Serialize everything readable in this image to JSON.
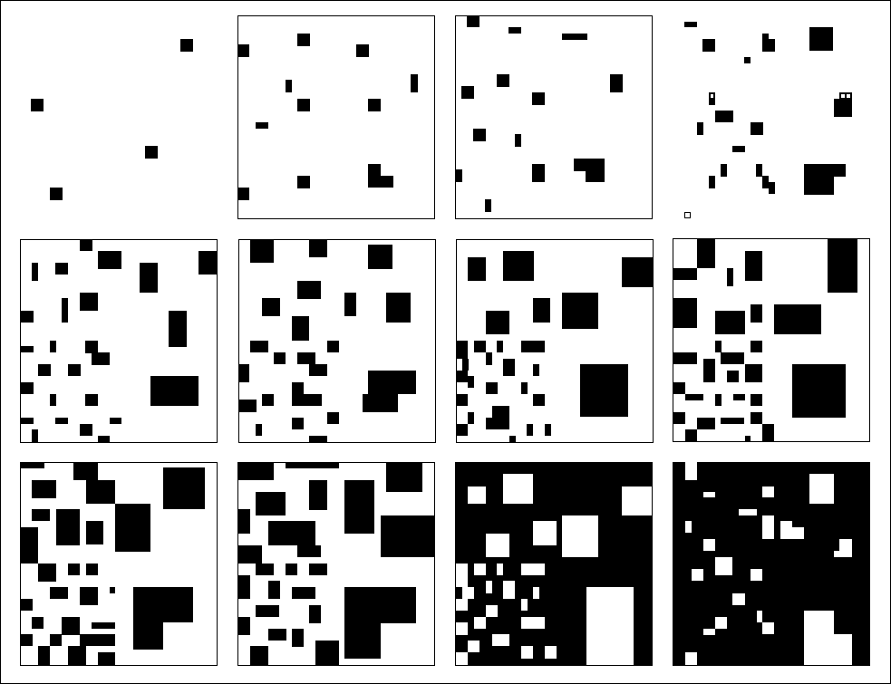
{
  "figure": {
    "description_free": true,
    "foreground_color": "#000000",
    "background_color": "#ffffff",
    "frame_border": true,
    "rows": 3,
    "columns": 4
  },
  "panels": [
    {
      "id": "p1",
      "framed": false,
      "inverted": false
    },
    {
      "id": "p2",
      "framed": true,
      "inverted": false
    },
    {
      "id": "p3",
      "framed": true,
      "inverted": false
    },
    {
      "id": "p4",
      "framed": false,
      "inverted": false
    },
    {
      "id": "p5",
      "framed": true,
      "inverted": false
    },
    {
      "id": "p6",
      "framed": true,
      "inverted": false
    },
    {
      "id": "p7",
      "framed": true,
      "inverted": false
    },
    {
      "id": "p8",
      "framed": true,
      "inverted": false
    },
    {
      "id": "p9",
      "framed": true,
      "inverted": false
    },
    {
      "id": "p10",
      "framed": true,
      "inverted": false
    },
    {
      "id": "p11",
      "framed": true,
      "inverted": true
    },
    {
      "id": "p12",
      "framed": true,
      "inverted": true
    }
  ]
}
